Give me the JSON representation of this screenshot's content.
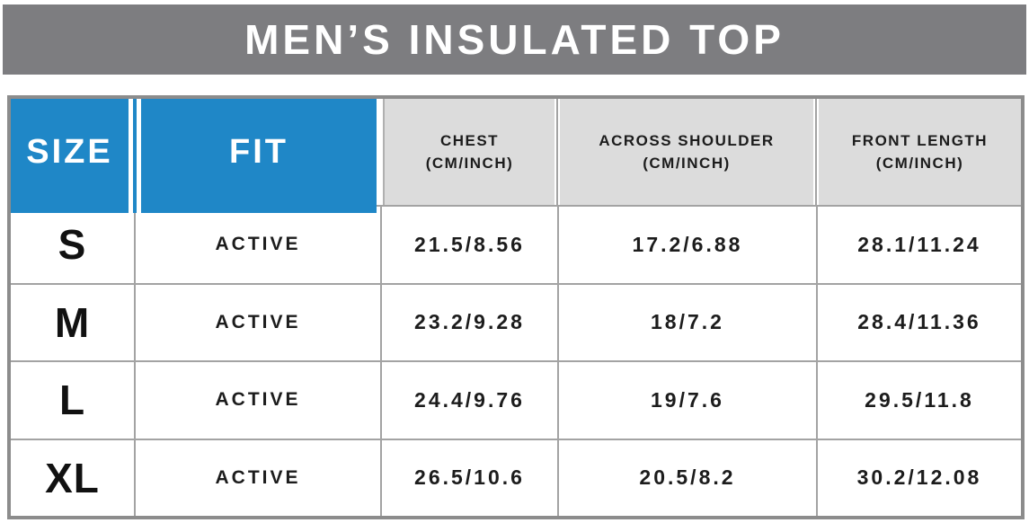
{
  "banner": {
    "title": "MEN’S INSULATED TOP"
  },
  "table": {
    "columns": [
      {
        "key": "size",
        "label": "SIZE"
      },
      {
        "key": "fit",
        "label": "FIT"
      },
      {
        "key": "chest",
        "label": "CHEST",
        "sublabel": "(CM/INCH)"
      },
      {
        "key": "shoulder",
        "label": "ACROSS SHOULDER",
        "sublabel": "(CM/INCH)"
      },
      {
        "key": "front",
        "label": "FRONT LENGTH",
        "sublabel": "(CM/INCH)"
      }
    ],
    "rows": [
      {
        "size": "S",
        "fit": "ACTIVE",
        "chest": "21.5/8.56",
        "shoulder": "17.2/6.88",
        "front": "28.1/11.24"
      },
      {
        "size": "M",
        "fit": "ACTIVE",
        "chest": "23.2/9.28",
        "shoulder": "18/7.2",
        "front": "28.4/11.36"
      },
      {
        "size": "L",
        "fit": "ACTIVE",
        "chest": "24.4/9.76",
        "shoulder": "19/7.6",
        "front": "29.5/11.8"
      },
      {
        "size": "XL",
        "fit": "ACTIVE",
        "chest": "26.5/10.6",
        "shoulder": "20.5/8.2",
        "front": "30.2/12.08"
      }
    ]
  },
  "chart_data": {
    "type": "table",
    "title": "MEN’S INSULATED TOP",
    "columns": [
      "SIZE",
      "FIT",
      "CHEST (CM/INCH)",
      "ACROSS SHOULDER (CM/INCH)",
      "FRONT LENGTH (CM/INCH)"
    ],
    "rows": [
      [
        "S",
        "ACTIVE",
        "21.5/8.56",
        "17.2/6.88",
        "28.1/11.24"
      ],
      [
        "M",
        "ACTIVE",
        "23.2/9.28",
        "18/7.2",
        "28.4/11.36"
      ],
      [
        "L",
        "ACTIVE",
        "24.4/9.76",
        "19/7.6",
        "29.5/11.8"
      ],
      [
        "XL",
        "ACTIVE",
        "26.5/10.6",
        "20.5/8.2",
        "30.2/12.08"
      ]
    ],
    "units": {
      "chest": "cm/inch",
      "shoulder": "cm/inch",
      "front_length": "cm/inch"
    }
  },
  "colors": {
    "accent_blue": "#1f87c7",
    "banner_gray": "#7d7d80",
    "header_cell_gray": "#dcdcdc",
    "table_border_gray": "#8c8c8c",
    "row_divider_gray": "#a3a3a3",
    "text_dark": "#1c1c1c",
    "text_light": "#ffffff"
  }
}
